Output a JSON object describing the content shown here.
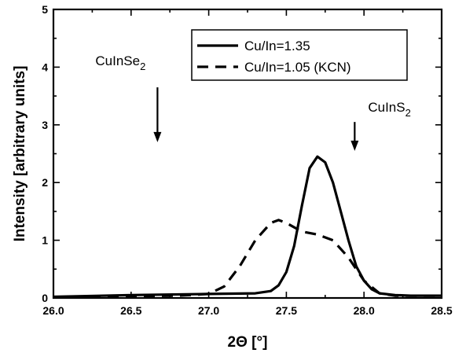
{
  "chart_data": {
    "type": "line",
    "xlabel": "2Θ  [°]",
    "ylabel": "Intensity [arbitrary units]",
    "xlim": [
      26.0,
      28.5
    ],
    "ylim": [
      0,
      5
    ],
    "x_ticks": [
      "26.0",
      "26.5",
      "27.0",
      "27.5",
      "28.0",
      "28.5"
    ],
    "y_ticks": [
      "0",
      "1",
      "2",
      "3",
      "4",
      "5"
    ],
    "legend_position": "top-right",
    "series": [
      {
        "name": "Cu/In=1.35",
        "style": "solid",
        "x": [
          26.0,
          26.5,
          27.0,
          27.3,
          27.4,
          27.45,
          27.5,
          27.55,
          27.6,
          27.65,
          27.7,
          27.75,
          27.8,
          27.85,
          27.9,
          27.95,
          28.0,
          28.05,
          28.1,
          28.2,
          28.3,
          28.5
        ],
        "y": [
          0.02,
          0.05,
          0.07,
          0.08,
          0.12,
          0.22,
          0.45,
          0.9,
          1.6,
          2.25,
          2.45,
          2.35,
          2.0,
          1.5,
          1.0,
          0.55,
          0.3,
          0.15,
          0.08,
          0.05,
          0.04,
          0.04
        ]
      },
      {
        "name": "Cu/In=1.05 (KCN)",
        "style": "dashed",
        "x": [
          26.0,
          26.5,
          26.8,
          27.0,
          27.1,
          27.2,
          27.3,
          27.4,
          27.45,
          27.5,
          27.6,
          27.7,
          27.8,
          27.9,
          28.0,
          28.1,
          28.2,
          28.3,
          28.5
        ],
        "y": [
          0.01,
          0.03,
          0.04,
          0.07,
          0.2,
          0.55,
          1.0,
          1.3,
          1.35,
          1.3,
          1.15,
          1.1,
          1.0,
          0.7,
          0.3,
          0.08,
          0.04,
          0.04,
          0.04
        ]
      }
    ],
    "annotations": [
      {
        "label": "CuInSe",
        "sub": "2",
        "arrow_x": 26.67,
        "arrow_from_y": 3.65,
        "arrow_to_y": 2.7
      },
      {
        "label": "CuInS",
        "sub": "2",
        "arrow_x": 27.94,
        "arrow_from_y": 3.05,
        "arrow_to_y": 2.55
      }
    ]
  }
}
